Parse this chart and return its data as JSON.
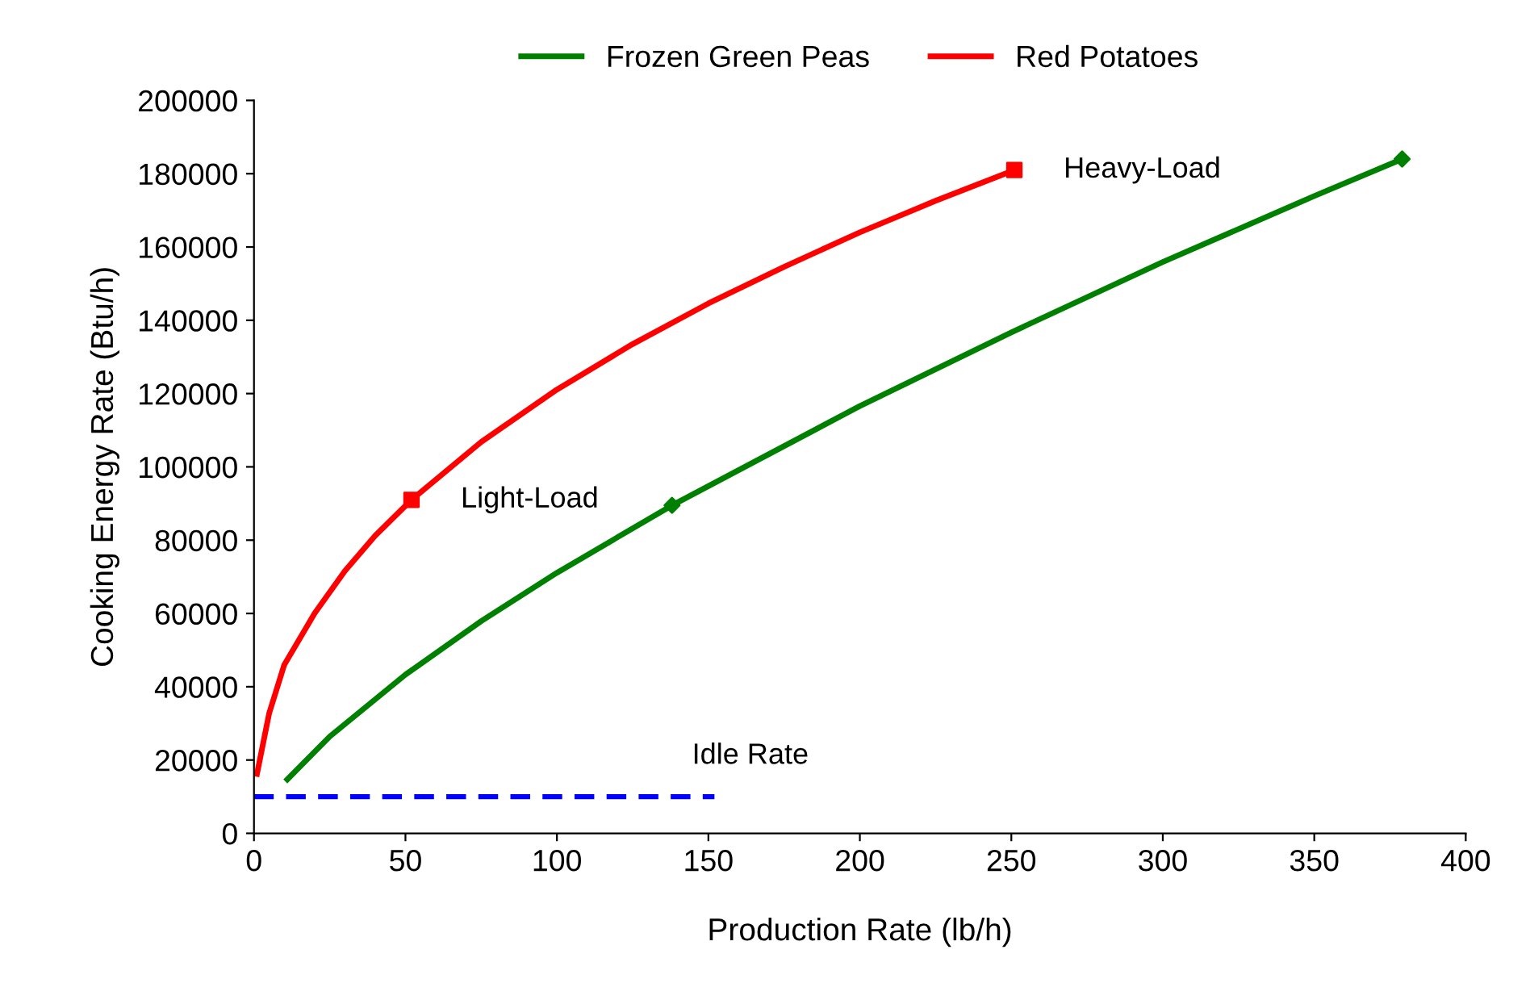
{
  "chart_data": {
    "type": "line",
    "xlabel": "Production Rate (lb/h)",
    "ylabel": "Cooking Energy Rate (Btu/h)",
    "xlim": [
      0,
      400
    ],
    "xticks": [
      0,
      50,
      100,
      150,
      200,
      250,
      300,
      350,
      400
    ],
    "ylim": [
      0,
      200000
    ],
    "yticks": [
      0,
      20000,
      40000,
      60000,
      80000,
      100000,
      120000,
      140000,
      160000,
      180000,
      200000
    ],
    "grid": false,
    "legend": "top",
    "marker": "none",
    "line_style": "solid",
    "series": [
      {
        "name": "Frozen Green Peas",
        "color": "#008000",
        "x": [
          11,
          25,
          50,
          75,
          100,
          138,
          200,
          250,
          300,
          350,
          379
        ],
        "values": [
          14700,
          26400,
          43300,
          57900,
          71100,
          89500,
          116600,
          136700,
          155900,
          173900,
          184000
        ]
      },
      {
        "name": "Red Potatoes",
        "color": "#ff0000",
        "x": [
          1,
          5,
          10,
          20,
          30,
          40,
          52,
          75,
          100,
          125,
          150,
          175,
          200,
          225,
          251
        ],
        "values": [
          16200,
          32700,
          46000,
          60000,
          71600,
          81200,
          91000,
          106800,
          121100,
          133500,
          144600,
          154600,
          164000,
          172600,
          181000
        ]
      },
      {
        "color": "#008000",
        "type": "scatter",
        "marker": "diamond",
        "x": [
          138,
          379
        ],
        "values": [
          89500,
          184000
        ]
      },
      {
        "color": "#ff0000",
        "type": "scatter",
        "marker": "square",
        "x": [
          52,
          251
        ],
        "values": [
          91000,
          181000
        ]
      },
      {
        "color": "#0000ff",
        "line_style": "dashed",
        "x": [
          0,
          152
        ],
        "values": [
          10000,
          10000
        ]
      }
    ],
    "annotations": [
      {
        "text": "Light-Load",
        "x": 52,
        "y": 91000
      },
      {
        "text": "Heavy-Load",
        "x": 251,
        "y": 181000
      },
      {
        "text": "Idle Rate",
        "x": 152,
        "y": 10000
      }
    ]
  }
}
